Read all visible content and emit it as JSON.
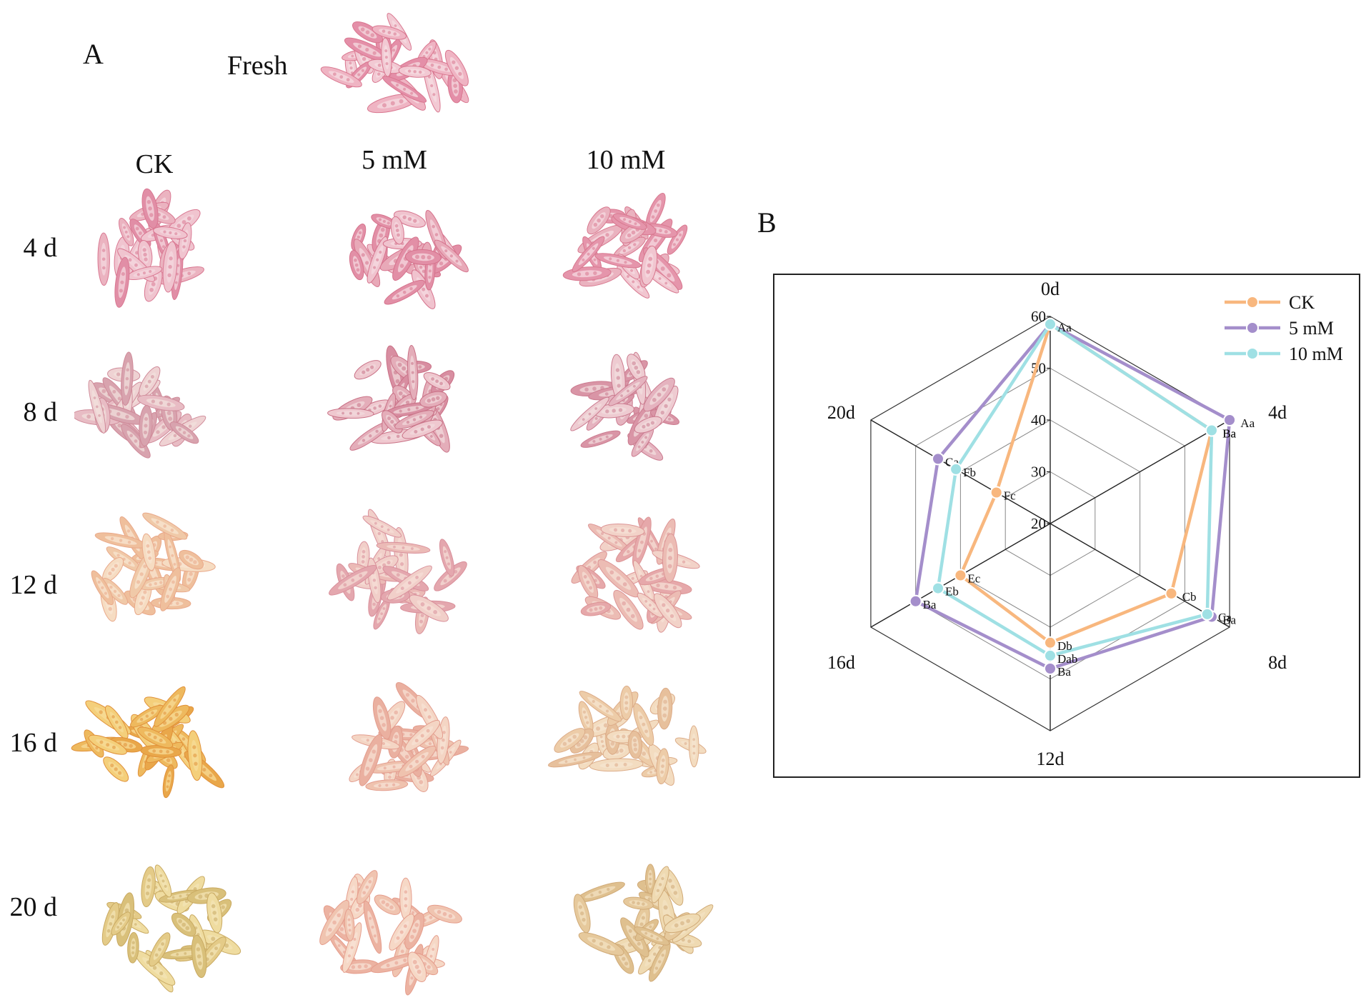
{
  "panel_a": {
    "letter": "A",
    "fresh_label": "Fresh",
    "columns": [
      "CK",
      "5 mM",
      "10 mM"
    ],
    "rows": [
      "4 d",
      "8 d",
      "12 d",
      "16 d",
      "20 d"
    ]
  },
  "panel_b": {
    "letter": "B"
  },
  "colors": {
    "CK": "#f8b77e",
    "5 mM": "#a48ecb",
    "10 mM": "#9fe0e4",
    "pink_fresh": "#e79ab0",
    "aged_yellow": "#e2c067",
    "aged_orange": "#e9a74a"
  },
  "chart_data": {
    "type": "radar",
    "axes": [
      "0d",
      "4d",
      "8d",
      "12d",
      "16d",
      "20d"
    ],
    "rlim": [
      20,
      60
    ],
    "ticks": [
      20,
      30,
      40,
      50,
      60
    ],
    "grid": true,
    "legend": "top-right",
    "series": [
      {
        "name": "CK",
        "values": [
          58.5,
          56,
          47,
          43,
          40,
          32
        ],
        "labels": [
          "",
          "Ba",
          "Cb",
          "Db",
          "Ec",
          "Fc"
        ]
      },
      {
        "name": "5 mM",
        "values": [
          58.5,
          60,
          56,
          48,
          50,
          45
        ],
        "labels": [
          "",
          "Aa",
          "Ba",
          "Ba",
          "Ba",
          "Ca"
        ]
      },
      {
        "name": "10 mM",
        "values": [
          58.5,
          56,
          55,
          45.5,
          45,
          41
        ],
        "labels": [
          "Aa",
          "Ba",
          "Ca",
          "Dab",
          "Eb",
          "Fb"
        ]
      }
    ]
  }
}
